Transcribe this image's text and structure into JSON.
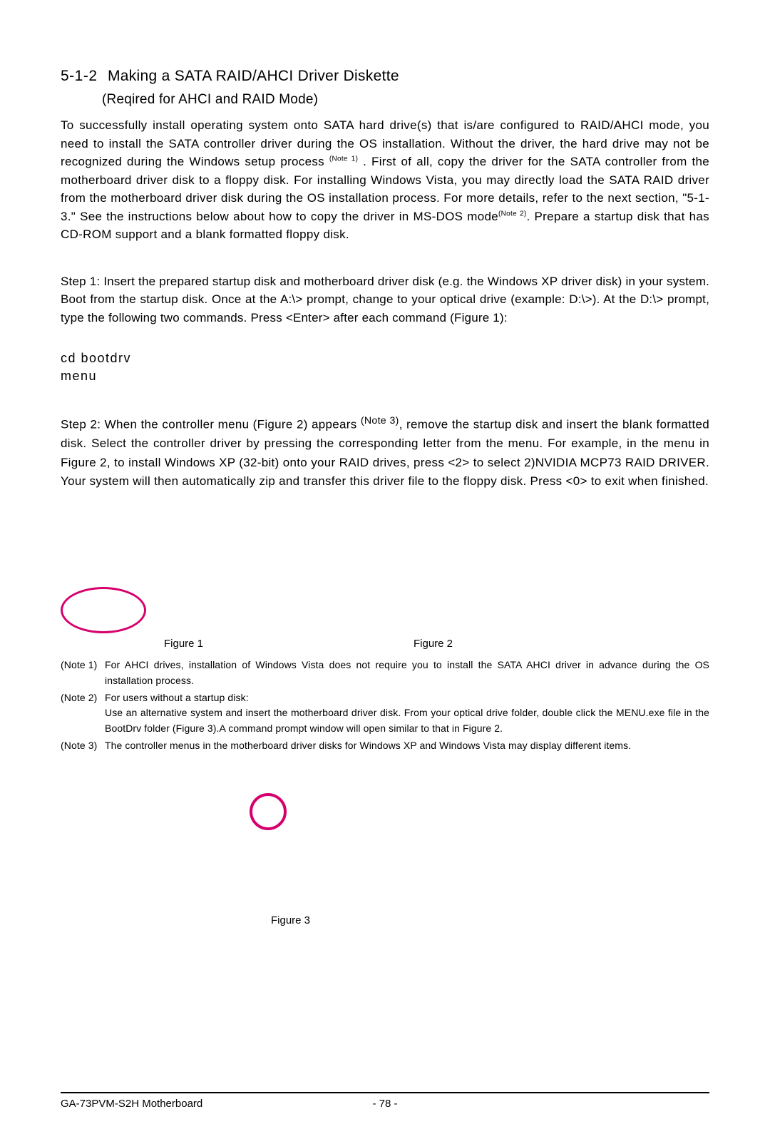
{
  "section": {
    "number": "5-1-2",
    "title": "Making a SATA RAID/AHCI Driver Diskette",
    "subtitle": "(Reqired for AHCI and RAID Mode)"
  },
  "para1_a": "To  successfully install operating system onto SATA hard drive(s) that is/are configured to RAID/AHCI mode, you need to install the SATA controller driver during the OS installation. Without the driver, the hard drive may not be recognized during the Windows setup process ",
  "para1_note1": "(Note 1)",
  "para1_b": " . First of all, copy the driver for the SATA controller from the motherboard driver disk to a floppy disk. For installing Windows Vista, you may directly load the SATA RAID driver from the motherboard driver disk during the OS installation process. For more details, refer to the next section, \"5-1-3.\" See the instructions below about how to copy the driver in MS-DOS mode",
  "para1_note2": "(Note 2)",
  "para1_c": ". Prepare a startup disk that has CD-ROM support and a blank formatted floppy disk.",
  "step1": "Step 1: Insert the prepared startup disk and motherboard driver disk (e.g. the Windows XP driver disk) in your system. Boot from the startup disk. Once at the A:\\> prompt, change to your optical drive (example: D:\\>). At the D:\\> prompt, type the following two commands. Press <Enter> after each command (Figure 1):",
  "cmd1": "cd bootdrv",
  "cmd2": "menu",
  "step2_a": "Step 2: When the controller menu (Figure 2) appears ",
  "step2_note3": "(Note 3)",
  "step2_b": ", remove the startup disk and insert the blank formatted disk. Select the controller driver by pressing the corresponding letter from the menu. For example, in the menu in Figure 2, to install Windows XP (32-bit) onto your RAID drives, press <2> to select 2)NVIDIA MCP73 RAID DRIVER. Your system will then automatically zip and transfer this driver file to the floppy disk. Press <0> to exit when finished.",
  "figure1_label": "Figure 1",
  "figure2_label": "Figure 2",
  "figure3_label": "Figure 3",
  "notes": {
    "n1_label": "(Note 1)",
    "n1_text": "For AHCI drives, installation of Windows Vista does not require you to install the SATA AHCI driver in advance during the OS installation process.",
    "n2_label": "(Note 2)",
    "n2_text_a": "For users without a startup disk:",
    "n2_text_b": "Use an alternative system and insert the motherboard driver disk. From your optical drive folder, double click the MENU.exe file in the BootDrv folder (Figure 3).A command prompt window will open similar to that in Figure 2.",
    "n3_label": "(Note 3)",
    "n3_text": "The controller menus in the motherboard driver disks for Windows XP and Windows Vista may display different items."
  },
  "footer": {
    "model": "GA-73PVM-S2H Motherboard",
    "page": "- 78 -"
  },
  "colors": {
    "highlight": "#d6006c",
    "text": "#000000",
    "bg": "#ffffff"
  }
}
